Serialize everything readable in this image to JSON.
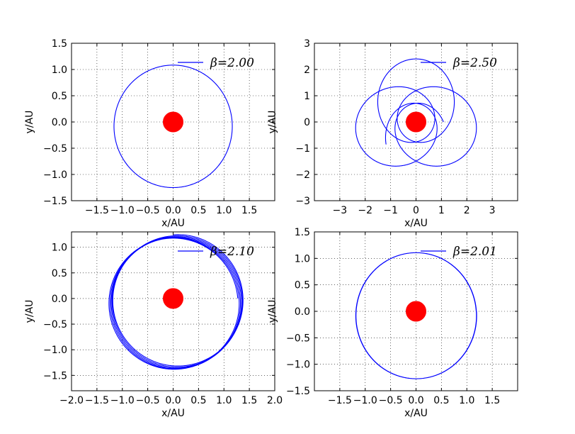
{
  "figure": {
    "background": "#ffffff",
    "orbit_color": "#0000ff",
    "star_color": "#ff0000",
    "grid_color": "#000000"
  },
  "chart_data": [
    {
      "type": "line",
      "position": "top-left",
      "xlabel": "x/AU",
      "ylabel": "y/AU",
      "xlim": [
        -2.0,
        2.0
      ],
      "ylim": [
        -1.5,
        1.5
      ],
      "xticks": [
        -1.5,
        -1.0,
        -0.5,
        0.0,
        0.5,
        1.0,
        1.5
      ],
      "xtick_labels": [
        "−1.5",
        "−1.0",
        "−0.5",
        "0.0",
        "0.5",
        "1.0",
        "1.5"
      ],
      "yticks": [
        -1.5,
        -1.0,
        -0.5,
        0.0,
        0.5,
        1.0,
        1.5
      ],
      "ytick_labels": [
        "−1.5",
        "−1.0",
        "−0.5",
        "0.0",
        "0.5",
        "1.0",
        "1.5"
      ],
      "grid": true,
      "legend_position": "top-right",
      "series": [
        {
          "name": "β=2.00",
          "kind": "orbit",
          "orbit": {
            "a": 1.167,
            "e": 0.0714,
            "omega_deg": 90,
            "precession_deg_per_rev": 0,
            "revolutions": 1,
            "start_deg": 0
          }
        }
      ],
      "star": {
        "x": 0.0,
        "y": 0.0
      }
    },
    {
      "type": "line",
      "position": "top-right",
      "xlabel": "x/AU",
      "ylabel": "y/AU",
      "xlim": [
        -4.0,
        4.0
      ],
      "ylim": [
        -3.0,
        3.0
      ],
      "xticks": [
        -3,
        -2,
        -1,
        0,
        1,
        2,
        3
      ],
      "xtick_labels": [
        "−3",
        "−2",
        "−1",
        "0",
        "1",
        "2",
        "3"
      ],
      "yticks": [
        -3,
        -2,
        -1,
        0,
        1,
        2,
        3
      ],
      "ytick_labels": [
        "−3",
        "−2",
        "−1",
        "0",
        "1",
        "2",
        "3"
      ],
      "grid": true,
      "legend_position": "top-right",
      "series": [
        {
          "name": "β=2.50",
          "kind": "orbit",
          "orbit": {
            "a": 1.55,
            "e": 0.55,
            "omega_deg": 90,
            "precession_deg_per_rev": 80,
            "revolutions": 4.6,
            "start_deg": 0
          }
        }
      ],
      "star": {
        "x": 0.0,
        "y": 0.0
      }
    },
    {
      "type": "line",
      "position": "bottom-left",
      "xlabel": "x/AU",
      "ylabel": "y/AU",
      "xlim": [
        -2.0,
        2.0
      ],
      "ylim": [
        -1.8,
        1.3
      ],
      "xticks": [
        -2.0,
        -1.5,
        -1.0,
        -0.5,
        0.0,
        0.5,
        1.0,
        1.5,
        2.0
      ],
      "xtick_labels": [
        "−2.0",
        "−1.5",
        "−1.0",
        "−0.5",
        "0.0",
        "0.5",
        "1.0",
        "1.5",
        "2.0"
      ],
      "yticks": [
        -1.5,
        -1.0,
        -0.5,
        0.0,
        0.5,
        1.0
      ],
      "ytick_labels": [
        "−1.5",
        "−1.0",
        "−0.5",
        "0.0",
        "0.5",
        "1.0"
      ],
      "grid": true,
      "legend_position": "top-right",
      "series": [
        {
          "name": "β=2.10",
          "kind": "orbit",
          "orbit": {
            "a": 1.28,
            "e": 0.08,
            "omega_deg": 90,
            "precession_deg_per_rev": 14,
            "revolutions": 5.25,
            "start_deg": 0
          }
        }
      ],
      "star": {
        "x": 0.0,
        "y": 0.0
      }
    },
    {
      "type": "line",
      "position": "bottom-right",
      "xlabel": "x/AU",
      "ylabel": "y/AU",
      "xlim": [
        -2.0,
        2.0
      ],
      "ylim": [
        -1.5,
        1.5
      ],
      "xticks": [
        -1.5,
        -1.0,
        -0.5,
        0.0,
        0.5,
        1.0,
        1.5
      ],
      "xtick_labels": [
        "−1.5",
        "−1.0",
        "−0.5",
        "0.0",
        "0.5",
        "1.0",
        "1.5"
      ],
      "yticks": [
        -1.5,
        -1.0,
        -0.5,
        0.0,
        0.5,
        1.0,
        1.5
      ],
      "ytick_labels": [
        "−1.5",
        "−1.0",
        "−0.5",
        "0.0",
        "0.5",
        "1.0",
        "1.5"
      ],
      "grid": true,
      "legend_position": "top-right",
      "series": [
        {
          "name": "β=2.01",
          "kind": "orbit",
          "orbit": {
            "a": 1.19,
            "e": 0.07,
            "omega_deg": 90,
            "precession_deg_per_rev": 1.5,
            "revolutions": 3,
            "start_deg": 0
          }
        }
      ],
      "star": {
        "x": 0.0,
        "y": 0.0
      }
    }
  ]
}
